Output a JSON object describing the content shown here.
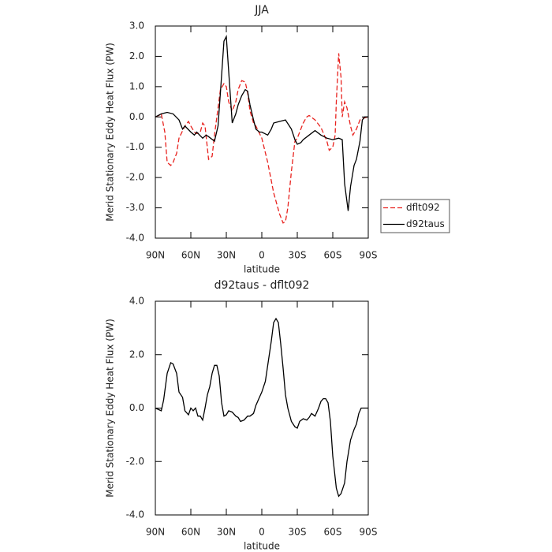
{
  "chart_data": [
    {
      "type": "line",
      "title": "JJA",
      "xlabel": "latitude",
      "ylabel": "Merid Stationary Eddy Heat Flux (PW)",
      "xlim": [
        90,
        -90
      ],
      "ylim": [
        -4,
        3
      ],
      "xticks": [
        {
          "value": 90,
          "label": "90N"
        },
        {
          "value": 60,
          "label": "60N"
        },
        {
          "value": 30,
          "label": "30N"
        },
        0,
        {
          "value": -30,
          "label": "30S"
        },
        {
          "value": -60,
          "label": "60S"
        },
        {
          "value": -90,
          "label": "90S"
        }
      ],
      "yticks": [
        {
          "value": 3,
          "label": "3.0"
        },
        {
          "value": 2,
          "label": "2.0"
        },
        {
          "value": 1,
          "label": "1.0"
        },
        {
          "value": 0,
          "label": "0.0"
        },
        {
          "value": -1,
          "label": "-1.0"
        },
        {
          "value": -2,
          "label": "-2.0"
        },
        {
          "value": -3,
          "label": "-3.0"
        },
        {
          "value": -4,
          "label": "-4.0"
        }
      ],
      "legend": "right",
      "series": [
        {
          "name": "dflt092",
          "color": "#e8221e",
          "dash": "dashed",
          "x": [
            90,
            87,
            85,
            82,
            80,
            77,
            75,
            72,
            70,
            65,
            62,
            60,
            57,
            55,
            52,
            50,
            48,
            45,
            42,
            40,
            37,
            35,
            32,
            30,
            28,
            25,
            22,
            20,
            17,
            14,
            12,
            10,
            7,
            5,
            0,
            -5,
            -10,
            -15,
            -18,
            -20,
            -22,
            -25,
            -28,
            -30,
            -33,
            -35,
            -38,
            -40,
            -45,
            -50,
            -55,
            -57,
            -60,
            -62,
            -63,
            -65,
            -67,
            -68,
            -70,
            -72,
            -75,
            -77,
            -80,
            -83,
            -85,
            -90
          ],
          "values": [
            0,
            0.05,
            0.1,
            -0.5,
            -1.5,
            -1.6,
            -1.5,
            -1.2,
            -0.7,
            -0.3,
            -0.15,
            -0.3,
            -0.5,
            -0.55,
            -0.5,
            -0.2,
            -0.3,
            -1.4,
            -1.3,
            -0.6,
            0.3,
            0.9,
            1.1,
            1.0,
            0.5,
            0.2,
            0.5,
            0.9,
            1.2,
            1.15,
            0.8,
            0.2,
            -0.2,
            -0.3,
            -0.7,
            -1.5,
            -2.5,
            -3.2,
            -3.5,
            -3.45,
            -3.0,
            -1.8,
            -0.8,
            -0.7,
            -0.4,
            -0.2,
            0.0,
            0.05,
            -0.1,
            -0.35,
            -0.8,
            -1.1,
            -1.0,
            -0.6,
            0.5,
            2.1,
            1.3,
            0.0,
            0.5,
            0.3,
            -0.3,
            -0.6,
            -0.4,
            -0.1,
            -0.05,
            0
          ]
        },
        {
          "name": "d92taus",
          "color": "#000000",
          "dash": "solid",
          "x": [
            90,
            85,
            80,
            75,
            70,
            67,
            65,
            60,
            57,
            55,
            50,
            47,
            45,
            40,
            37,
            35,
            32,
            30,
            28,
            25,
            22,
            20,
            17,
            14,
            12,
            10,
            7,
            5,
            2,
            0,
            -5,
            -8,
            -10,
            -15,
            -20,
            -25,
            -28,
            -30,
            -33,
            -35,
            -40,
            -45,
            -50,
            -55,
            -60,
            -65,
            -68,
            -70,
            -73,
            -75,
            -78,
            -80,
            -83,
            -85,
            -87,
            -90
          ],
          "values": [
            0,
            0.1,
            0.15,
            0.1,
            -0.1,
            -0.4,
            -0.3,
            -0.5,
            -0.6,
            -0.5,
            -0.7,
            -0.6,
            -0.65,
            -0.8,
            -0.3,
            0.8,
            2.5,
            2.65,
            1.5,
            -0.2,
            0.1,
            0.4,
            0.7,
            0.9,
            0.85,
            0.4,
            -0.1,
            -0.4,
            -0.5,
            -0.5,
            -0.6,
            -0.4,
            -0.2,
            -0.15,
            -0.1,
            -0.4,
            -0.75,
            -0.9,
            -0.85,
            -0.75,
            -0.6,
            -0.45,
            -0.6,
            -0.7,
            -0.75,
            -0.7,
            -0.75,
            -2.2,
            -3.1,
            -2.3,
            -1.6,
            -1.4,
            -0.8,
            -0.1,
            0,
            0
          ]
        }
      ]
    },
    {
      "type": "line",
      "title": "d92taus - dflt092",
      "xlabel": "latitude",
      "ylabel": "Merid Stationary Eddy Heat Flux (PW)",
      "xlim": [
        90,
        -90
      ],
      "ylim": [
        -4,
        4
      ],
      "xticks": [
        {
          "value": 90,
          "label": "90N"
        },
        {
          "value": 60,
          "label": "60N"
        },
        {
          "value": 30,
          "label": "30N"
        },
        0,
        {
          "value": -30,
          "label": "30S"
        },
        {
          "value": -60,
          "label": "60S"
        },
        {
          "value": -90,
          "label": "90S"
        }
      ],
      "yticks": [
        {
          "value": 4,
          "label": "4.0"
        },
        {
          "value": 2,
          "label": "2.0"
        },
        {
          "value": 0,
          "label": "0.0"
        },
        {
          "value": -2,
          "label": "-2.0"
        },
        {
          "value": -4,
          "label": "-4.0"
        }
      ],
      "series": [
        {
          "color": "#000000",
          "dash": "solid",
          "x": [
            90,
            85,
            83,
            80,
            77,
            75,
            72,
            70,
            67,
            65,
            62,
            60,
            58,
            56,
            54,
            52,
            50,
            48,
            46,
            44,
            42,
            40,
            38,
            36,
            34,
            32,
            30,
            28,
            25,
            22,
            20,
            18,
            15,
            12,
            10,
            7,
            5,
            2,
            0,
            -3,
            -5,
            -8,
            -10,
            -12,
            -14,
            -16,
            -18,
            -20,
            -22,
            -25,
            -28,
            -30,
            -32,
            -35,
            -38,
            -40,
            -42,
            -45,
            -48,
            -50,
            -52,
            -54,
            -56,
            -58,
            -60,
            -63,
            -65,
            -67,
            -70,
            -72,
            -75,
            -78,
            -80,
            -82,
            -84,
            -90
          ],
          "values": [
            0,
            -0.1,
            0.3,
            1.3,
            1.7,
            1.65,
            1.3,
            0.6,
            0.4,
            -0.1,
            -0.25,
            0.0,
            -0.1,
            0.0,
            -0.3,
            -0.3,
            -0.45,
            0.0,
            0.5,
            0.8,
            1.3,
            1.6,
            1.6,
            1.2,
            0.2,
            -0.3,
            -0.25,
            -0.1,
            -0.15,
            -0.3,
            -0.35,
            -0.5,
            -0.45,
            -0.3,
            -0.3,
            -0.2,
            0.1,
            0.4,
            0.6,
            1.0,
            1.6,
            2.5,
            3.2,
            3.35,
            3.2,
            2.4,
            1.5,
            0.5,
            0.0,
            -0.5,
            -0.7,
            -0.75,
            -0.5,
            -0.4,
            -0.45,
            -0.35,
            -0.2,
            -0.3,
            0.0,
            0.25,
            0.35,
            0.35,
            0.2,
            -0.5,
            -1.8,
            -3.0,
            -3.3,
            -3.2,
            -2.8,
            -2.0,
            -1.2,
            -0.8,
            -0.6,
            -0.2,
            0.0,
            0.0
          ]
        }
      ]
    }
  ]
}
